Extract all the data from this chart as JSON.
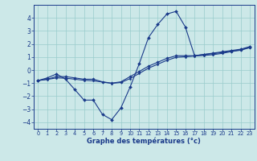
{
  "x": [
    0,
    1,
    2,
    3,
    4,
    5,
    6,
    7,
    8,
    9,
    10,
    11,
    12,
    13,
    14,
    15,
    16,
    17,
    18,
    19,
    20,
    21,
    22,
    23
  ],
  "line_jagged": [
    -0.8,
    -0.6,
    -0.3,
    -0.7,
    -1.5,
    -2.3,
    -2.3,
    -3.4,
    -3.8,
    -2.9,
    -1.3,
    0.5,
    2.5,
    3.5,
    4.3,
    4.5,
    3.3,
    1.1,
    1.2,
    1.3,
    1.4,
    1.5,
    1.6,
    1.8
  ],
  "line_upper": [
    -0.8,
    -0.7,
    -0.5,
    -0.5,
    -0.6,
    -0.7,
    -0.7,
    -0.9,
    -1.0,
    -0.9,
    -0.5,
    -0.1,
    0.3,
    0.6,
    0.9,
    1.1,
    1.1,
    1.1,
    1.2,
    1.25,
    1.35,
    1.45,
    1.55,
    1.75
  ],
  "line_lower": [
    -0.8,
    -0.72,
    -0.6,
    -0.62,
    -0.7,
    -0.78,
    -0.82,
    -0.92,
    -1.02,
    -0.95,
    -0.65,
    -0.25,
    0.15,
    0.45,
    0.75,
    0.98,
    1.02,
    1.08,
    1.12,
    1.18,
    1.28,
    1.42,
    1.52,
    1.72
  ],
  "bg_color": "#cce8e8",
  "grid_color": "#99cccc",
  "line_color": "#1a3a8a",
  "xlabel": "Graphe des températures (°c)",
  "ylim": [
    -4.5,
    5.0
  ],
  "xlim": [
    -0.5,
    23.5
  ],
  "yticks": [
    -4,
    -3,
    -2,
    -1,
    0,
    1,
    2,
    3,
    4
  ],
  "xticks": [
    0,
    1,
    2,
    3,
    4,
    5,
    6,
    7,
    8,
    9,
    10,
    11,
    12,
    13,
    14,
    15,
    16,
    17,
    18,
    19,
    20,
    21,
    22,
    23
  ]
}
